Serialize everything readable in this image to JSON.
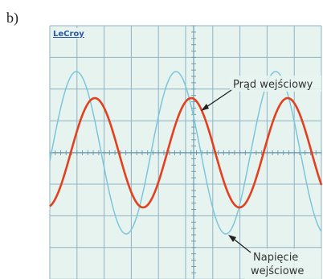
{
  "label": "b)",
  "screen": {
    "brand": "LeCroy"
  },
  "annotations": {
    "current": "Prąd wejściowy",
    "voltage_line1": "Napięcie",
    "voltage_line2": "wejściowe"
  }
}
